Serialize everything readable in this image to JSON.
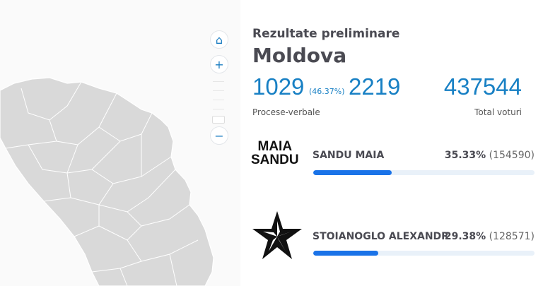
{
  "map": {
    "controls": {
      "home_icon": "home-icon",
      "zoom_in_icon": "plus-icon",
      "zoom_out_icon": "minus-icon"
    },
    "region_fill": "#d9d9d9"
  },
  "header": {
    "subtitle": "Rezultate preliminare",
    "title": "Moldova"
  },
  "stats": {
    "processed": "1029",
    "processed_pct": "(46.37%)",
    "total_processed": "2219",
    "processed_label": "Procese-verbale",
    "total_votes": "437544",
    "total_votes_label": "Total voturi"
  },
  "candidates": [
    {
      "logo_text": "MAIA SANDU",
      "name": "SANDU MAIA",
      "percent": "35.33%",
      "votes": "(154590)",
      "share": 35.33
    },
    {
      "logo_icon": "star-icon",
      "name": "STOIANOGLO ALEXANDR",
      "percent": "29.38%",
      "votes": "(128571)",
      "share": 29.38
    }
  ],
  "colors": {
    "accent": "#1880c4",
    "bar": "#1a73e8",
    "bar_track": "#e9f1f9"
  }
}
